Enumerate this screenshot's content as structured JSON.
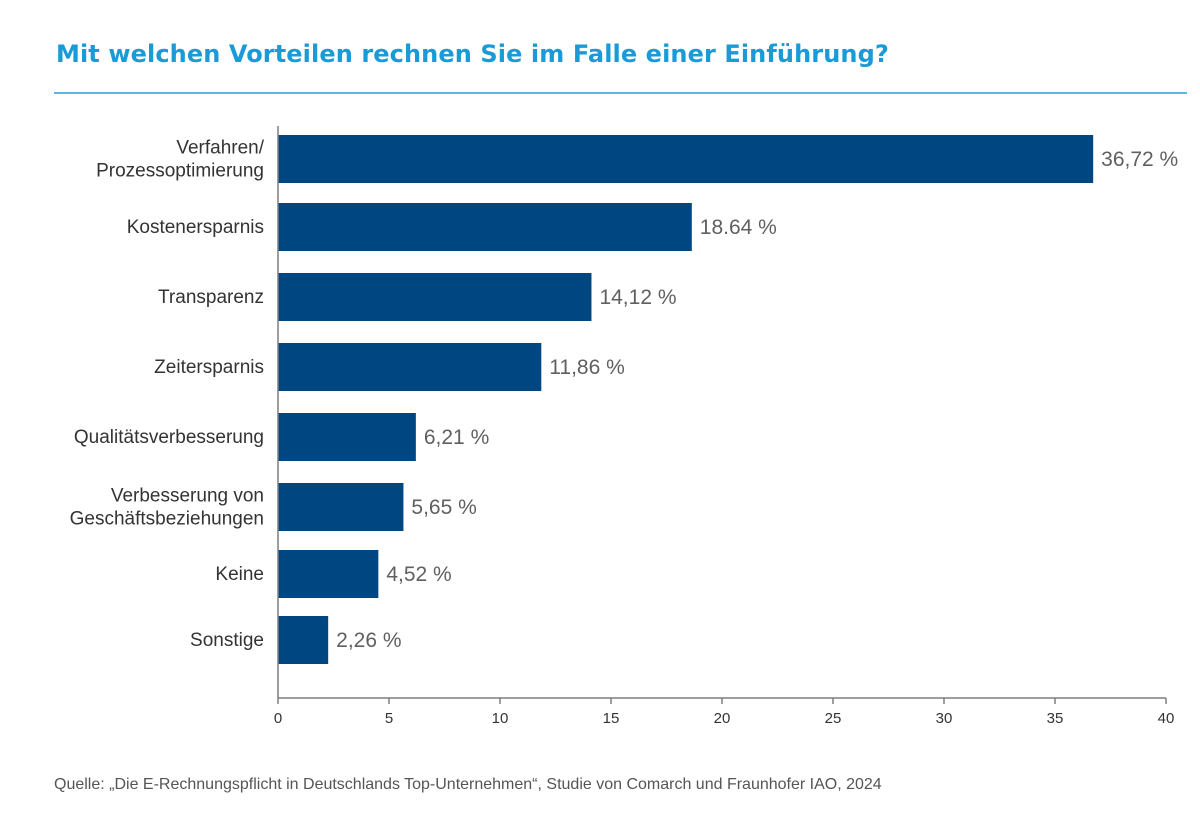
{
  "title": "Mit welchen Vorteilen rechnen Sie im Falle einer Einführung?",
  "source": "Quelle: „Die E-Rechnungspflicht in Deutschlands Top-Unternehmen“, Studie von Comarch und Fraunhofer IAO, 2024",
  "colors": {
    "bar": "#004782",
    "title": "#1a9ad6",
    "axis": "#7f7f7f"
  },
  "chart_data": {
    "type": "bar",
    "orientation": "horizontal",
    "categories": [
      [
        "Verfahren/",
        "Prozessoptimierung"
      ],
      [
        "Kostenersparnis"
      ],
      [
        "Transparenz"
      ],
      [
        "Zeitersparnis"
      ],
      [
        "Qualitätsverbesserung"
      ],
      [
        "Verbesserung von",
        "Geschäftsbeziehungen"
      ],
      [
        "Keine"
      ],
      [
        "Sonstige"
      ]
    ],
    "values": [
      36.72,
      18.64,
      14.12,
      11.86,
      6.21,
      5.65,
      4.52,
      2.26
    ],
    "value_labels": [
      "36,72 %",
      "18.64 %",
      "14,12 %",
      "11,86 %",
      "6,21 %",
      "5,65 %",
      "4,52 %",
      "2,26 %"
    ],
    "xlim": [
      0,
      40
    ],
    "xticks": [
      0,
      5,
      10,
      15,
      20,
      25,
      30,
      35,
      40
    ],
    "grid": false,
    "legend": "none"
  }
}
